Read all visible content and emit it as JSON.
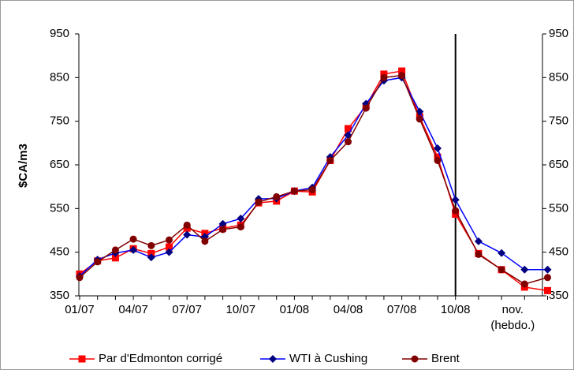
{
  "chart_data": {
    "type": "line",
    "y_label": "$CA/m3",
    "categories": [
      "01/07",
      null,
      null,
      "04/07",
      null,
      null,
      "07/07",
      null,
      null,
      "10/07",
      null,
      null,
      "01/08",
      null,
      null,
      "04/08",
      null,
      null,
      "07/08",
      null,
      null,
      "10/08",
      null,
      null,
      "nov. (hebdo.)",
      null
    ],
    "series": [
      {
        "name": "Par d'Edmonton corrigé",
        "color": "#ff0000",
        "marker": "square",
        "values": [
          400,
          430,
          437,
          458,
          447,
          462,
          505,
          493,
          505,
          512,
          563,
          567,
          590,
          588,
          660,
          733,
          785,
          858,
          865,
          760,
          668,
          537,
          447,
          410,
          370,
          362
        ]
      },
      {
        "name": "WTI à Cushing",
        "color": "#0000ff",
        "marker_color": "#000080",
        "marker": "diamond",
        "values": [
          395,
          433,
          448,
          455,
          438,
          450,
          490,
          485,
          515,
          527,
          572,
          573,
          590,
          598,
          668,
          718,
          790,
          843,
          850,
          772,
          688,
          570,
          475,
          448,
          410,
          410
        ]
      },
      {
        "name": "Brent",
        "color": "#800000",
        "marker": "circle",
        "values": [
          392,
          428,
          455,
          480,
          465,
          478,
          512,
          475,
          502,
          508,
          565,
          577,
          590,
          593,
          660,
          703,
          780,
          850,
          855,
          755,
          660,
          545,
          445,
          410,
          377,
          392
        ]
      }
    ],
    "ylim": [
      350,
      950
    ],
    "yticks": [
      350,
      450,
      550,
      650,
      750,
      850,
      950
    ],
    "y2lim": [
      350,
      950
    ],
    "y2ticks": [
      350,
      450,
      550,
      650,
      750,
      850,
      950
    ],
    "legend": "bottom"
  }
}
